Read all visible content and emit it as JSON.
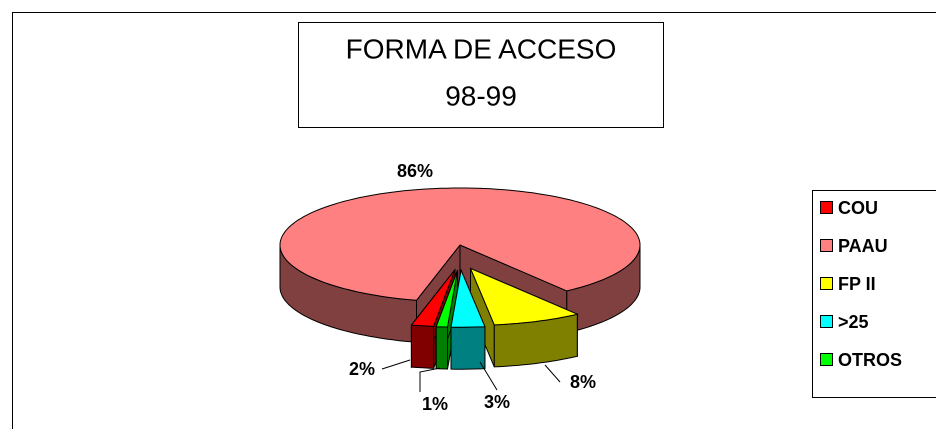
{
  "chart_data": {
    "type": "pie3d",
    "title": "FORMA DE ACCESO",
    "subtitle": "98-99",
    "categories": [
      "COU",
      "PAAU",
      "FP II",
      ">25",
      "OTROS"
    ],
    "values": [
      2,
      86,
      8,
      3,
      1
    ],
    "value_labels": [
      "2%",
      "86%",
      "8%",
      "3%",
      "1%"
    ],
    "colors": [
      "#ff0000",
      "#ff8080",
      "#ffff00",
      "#00ffff",
      "#00ff00"
    ],
    "exploded": [
      true,
      false,
      true,
      true,
      true
    ],
    "legend": "right"
  }
}
